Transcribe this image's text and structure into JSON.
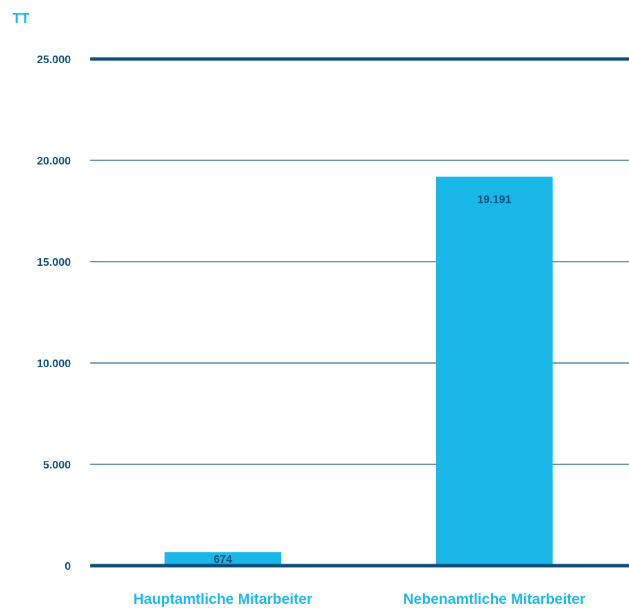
{
  "chart_data": {
    "type": "bar",
    "title": "",
    "unit_label": "TT",
    "categories": [
      "Hauptamtliche Mitarbeiter",
      "Nebenamtliche Mitarbeiter"
    ],
    "values": [
      674,
      19191
    ],
    "data_labels": [
      "674",
      "19.191"
    ],
    "y_ticks": [
      0,
      5000,
      10000,
      15000,
      20000,
      25000
    ],
    "y_tick_labels": [
      "0",
      "5.000",
      "10.000",
      "15.000",
      "20.000",
      "25.000"
    ],
    "ylim": [
      0,
      25000
    ],
    "grid": true,
    "legend": "none"
  },
  "colors": {
    "bar": "#1ab8e8",
    "axis": "#0e4f7a",
    "text": "#0e4f7a",
    "category_label": "#1ab8e8"
  }
}
